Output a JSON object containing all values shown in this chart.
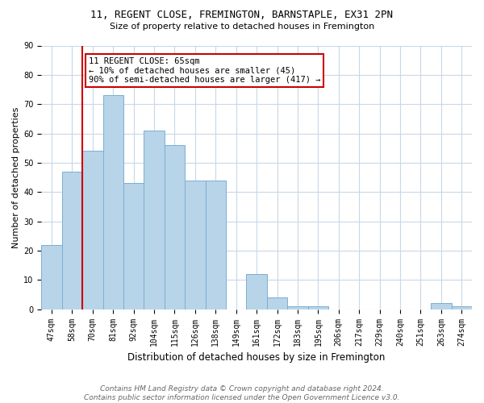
{
  "title": "11, REGENT CLOSE, FREMINGTON, BARNSTAPLE, EX31 2PN",
  "subtitle": "Size of property relative to detached houses in Fremington",
  "xlabel": "Distribution of detached houses by size in Fremington",
  "ylabel": "Number of detached properties",
  "categories": [
    "47sqm",
    "58sqm",
    "70sqm",
    "81sqm",
    "92sqm",
    "104sqm",
    "115sqm",
    "126sqm",
    "138sqm",
    "149sqm",
    "161sqm",
    "172sqm",
    "183sqm",
    "195sqm",
    "206sqm",
    "217sqm",
    "229sqm",
    "240sqm",
    "251sqm",
    "263sqm",
    "274sqm"
  ],
  "values": [
    22,
    47,
    54,
    73,
    43,
    61,
    56,
    44,
    44,
    0,
    12,
    4,
    1,
    1,
    0,
    0,
    0,
    0,
    0,
    2,
    1
  ],
  "bar_color": "#b8d4e8",
  "bar_edge_color": "#7aafd4",
  "vline_x_idx": 1.5,
  "vline_color": "#cc0000",
  "ylim": [
    0,
    90
  ],
  "yticks": [
    0,
    10,
    20,
    30,
    40,
    50,
    60,
    70,
    80,
    90
  ],
  "annotation_title": "11 REGENT CLOSE: 65sqm",
  "annotation_line1": "← 10% of detached houses are smaller (45)",
  "annotation_line2": "90% of semi-detached houses are larger (417) →",
  "annotation_box_color": "#ffffff",
  "annotation_box_edge": "#cc0000",
  "footer1": "Contains HM Land Registry data © Crown copyright and database right 2024.",
  "footer2": "Contains public sector information licensed under the Open Government Licence v3.0.",
  "background_color": "#ffffff",
  "grid_color": "#c8d8e8",
  "title_fontsize": 9,
  "subtitle_fontsize": 8,
  "xlabel_fontsize": 8.5,
  "ylabel_fontsize": 8,
  "tick_fontsize": 7,
  "footer_fontsize": 6.5
}
